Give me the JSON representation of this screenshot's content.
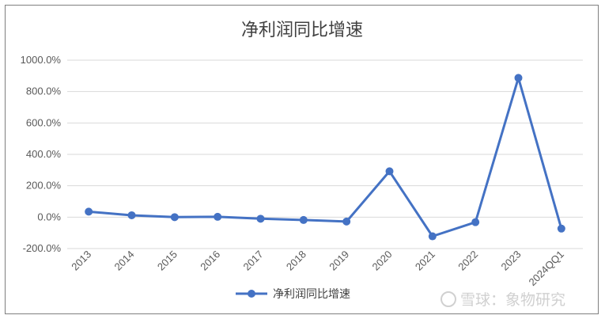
{
  "chart_data": {
    "type": "line",
    "title": "净利润同比增速",
    "xlabel": "",
    "ylabel": "",
    "categories": [
      "2013",
      "2014",
      "2015",
      "2016",
      "2017",
      "2018",
      "2019",
      "2020",
      "2021",
      "2022",
      "2023",
      "2024QQ1"
    ],
    "series": [
      {
        "name": "净利润同比增速",
        "color": "#4472c4",
        "values": [
          35,
          12,
          0,
          2,
          -10,
          -18,
          -28,
          292,
          -122,
          -32,
          887,
          -73
        ]
      }
    ],
    "ylim": [
      -200,
      1000
    ],
    "yticks": [
      1000,
      800,
      600,
      400,
      200,
      0,
      -200
    ],
    "ytick_labels": [
      "1000.0%",
      "800.0%",
      "600.0%",
      "400.0%",
      "200.0%",
      "0.0%",
      "-200.0%"
    ],
    "grid": true,
    "legend_position": "bottom"
  },
  "watermark": "雪球：象物研究"
}
